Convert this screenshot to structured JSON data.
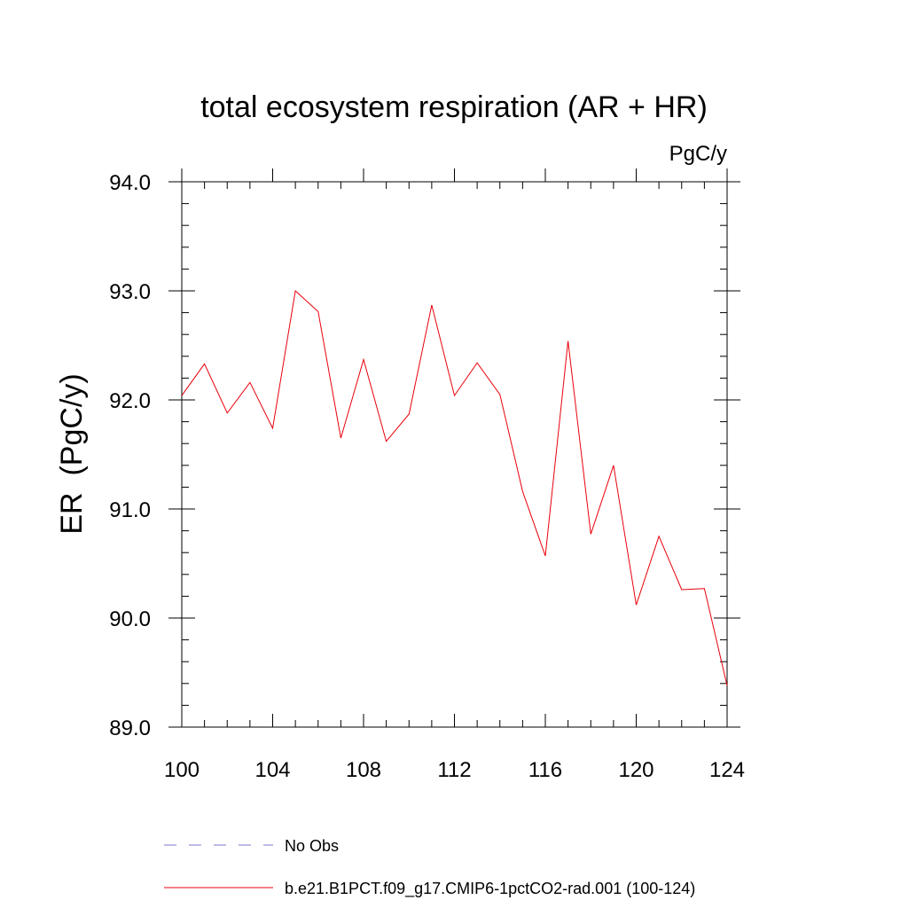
{
  "chart_data": {
    "type": "line",
    "title": "total ecosystem respiration (AR + HR)",
    "units": "PgC/y",
    "ylabel": "ER  (PgC/y)",
    "xlabel": "",
    "xlim": [
      100,
      124
    ],
    "ylim": [
      89.0,
      94.0
    ],
    "xticks": [
      100,
      104,
      108,
      112,
      116,
      120,
      124
    ],
    "xtick_labels": [
      "100",
      "104",
      "108",
      "112",
      "116",
      "120",
      "124"
    ],
    "yticks": [
      89.0,
      90.0,
      91.0,
      92.0,
      93.0,
      94.0
    ],
    "ytick_labels": [
      "89.0",
      "90.0",
      "91.0",
      "92.0",
      "93.0",
      "94.0"
    ],
    "grid": false,
    "legend_position": "bottom",
    "series": [
      {
        "name": "b.e21.B1PCT.f09_g17.CMIP6-1pctCO2-rad.001 (100-124)",
        "color": "#e8000b",
        "style": "solid",
        "x": [
          100,
          101,
          102,
          103,
          104,
          105,
          106,
          107,
          108,
          109,
          110,
          111,
          112,
          113,
          114,
          115,
          116,
          117,
          118,
          119,
          120,
          121,
          122,
          123,
          124
        ],
        "values": [
          92.04,
          92.33,
          91.88,
          92.16,
          91.74,
          93.0,
          92.81,
          91.65,
          92.37,
          91.62,
          91.87,
          92.87,
          92.04,
          92.34,
          92.05,
          91.16,
          90.57,
          92.54,
          90.77,
          91.4,
          90.12,
          90.75,
          90.26,
          90.27,
          89.38
        ]
      },
      {
        "name": "No Obs",
        "color": "#7b7bc8",
        "style": "dashed",
        "x": [],
        "values": []
      }
    ]
  }
}
